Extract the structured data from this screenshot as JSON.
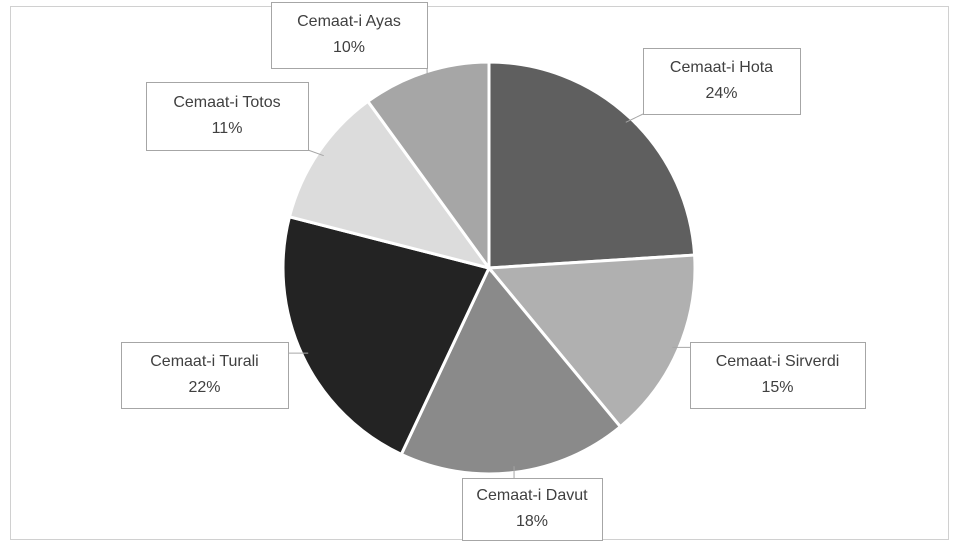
{
  "chart_data": {
    "type": "pie",
    "categories": [
      "Cemaat-i Hota",
      "Cemaat-i Sirverdi",
      "Cemaat-i Davut",
      "Cemaat-i Turali",
      "Cemaat-i Totos",
      "Cemaat-i Ayas"
    ],
    "values": [
      24,
      15,
      18,
      22,
      11,
      10
    ],
    "value_labels": [
      "24%",
      "15%",
      "18%",
      "22%",
      "11%",
      "10%"
    ],
    "colors": [
      "#5f5f5f",
      "#b0b0b0",
      "#8a8a8a",
      "#232323",
      "#dcdcdc",
      "#a6a6a6"
    ]
  }
}
